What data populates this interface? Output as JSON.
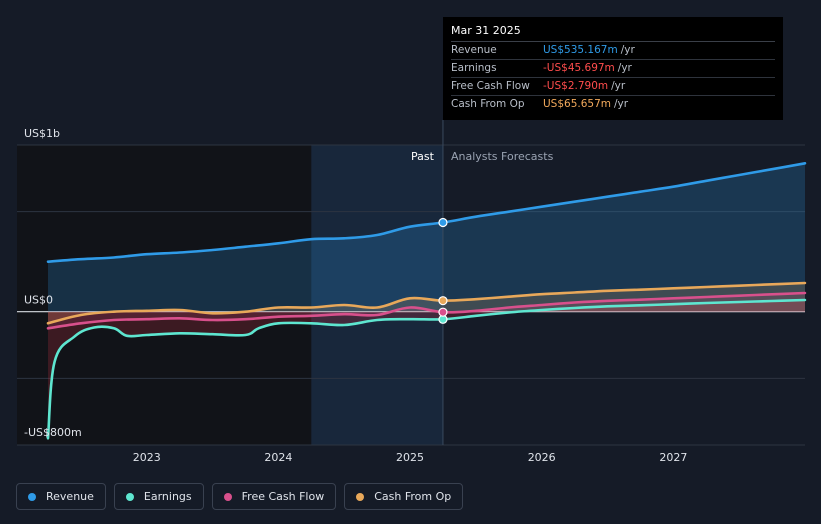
{
  "colors": {
    "revenue": "#2f9be8",
    "earnings": "#5ee6d0",
    "fcf": "#d8508c",
    "cfo": "#e8a85a",
    "background": "#151b27",
    "past_band": "#111317"
  },
  "tooltip": {
    "date": "Mar 31 2025",
    "rows": [
      {
        "label": "Revenue",
        "value": "US$535.167m",
        "unit": "/yr",
        "color": "#2f9be8"
      },
      {
        "label": "Earnings",
        "value": "-US$45.697m",
        "unit": "/yr",
        "color": "#ff4d4d"
      },
      {
        "label": "Free Cash Flow",
        "value": "-US$2.790m",
        "unit": "/yr",
        "color": "#ff4d4d"
      },
      {
        "label": "Cash From Op",
        "value": "US$65.657m",
        "unit": "/yr",
        "color": "#f2a95c"
      }
    ]
  },
  "legend": [
    {
      "label": "Revenue",
      "color": "#2f9be8"
    },
    {
      "label": "Earnings",
      "color": "#5ee6d0"
    },
    {
      "label": "Free Cash Flow",
      "color": "#d8508c"
    },
    {
      "label": "Cash From Op",
      "color": "#e8a85a"
    }
  ],
  "chart_data": {
    "type": "line",
    "y_unit": "US$ millions",
    "ylim": [
      -800,
      1000
    ],
    "y_labels": [
      {
        "value": 1000,
        "text": "US$1b"
      },
      {
        "value": 0,
        "text": "US$0"
      },
      {
        "value": -800,
        "text": "-US$800m"
      }
    ],
    "gridlines": [
      1000,
      600,
      0,
      -400
    ],
    "xlim": [
      2022.25,
      2028.0
    ],
    "x_ticks": [
      {
        "value": 2023.0,
        "text": "2023"
      },
      {
        "value": 2024.0,
        "text": "2024"
      },
      {
        "value": 2025.0,
        "text": "2025"
      },
      {
        "value": 2026.0,
        "text": "2026"
      },
      {
        "value": 2027.0,
        "text": "2027"
      }
    ],
    "past_label": "Past",
    "forecast_label": "Analysts Forecasts",
    "divider_x": 2025.25,
    "highlight_start_x": 2024.25,
    "series": [
      {
        "name": "Revenue",
        "key": "revenue",
        "x": [
          2022.25,
          2022.5,
          2022.75,
          2023.0,
          2023.25,
          2023.5,
          2023.75,
          2024.0,
          2024.25,
          2024.5,
          2024.75,
          2025.0,
          2025.25,
          2025.5,
          2025.75,
          2026.0,
          2026.25,
          2026.5,
          2026.75,
          2027.0,
          2027.25,
          2027.5,
          2027.75,
          2028.0
        ],
        "y": [
          300,
          315,
          325,
          345,
          355,
          370,
          390,
          410,
          435,
          440,
          460,
          510,
          535,
          570,
          600,
          630,
          660,
          690,
          720,
          750,
          785,
          820,
          855,
          890
        ]
      },
      {
        "name": "Earnings",
        "key": "earnings",
        "x": [
          2022.25,
          2022.3,
          2022.45,
          2022.6,
          2022.75,
          2022.85,
          2023.0,
          2023.25,
          2023.5,
          2023.75,
          2023.85,
          2024.0,
          2024.25,
          2024.5,
          2024.75,
          2025.0,
          2025.25,
          2025.5,
          2025.75,
          2026.0,
          2026.25,
          2026.5,
          2026.75,
          2027.0,
          2027.25,
          2027.5,
          2027.75,
          2028.0
        ],
        "y": [
          -760,
          -300,
          -150,
          -95,
          -100,
          -145,
          -140,
          -130,
          -135,
          -140,
          -100,
          -70,
          -70,
          -80,
          -50,
          -45,
          -46,
          -25,
          -5,
          10,
          22,
          32,
          38,
          45,
          52,
          58,
          64,
          70
        ]
      },
      {
        "name": "Free Cash Flow",
        "key": "fcf",
        "x": [
          2022.25,
          2022.5,
          2022.75,
          2023.0,
          2023.25,
          2023.5,
          2023.75,
          2024.0,
          2024.25,
          2024.5,
          2024.75,
          2025.0,
          2025.25,
          2025.5,
          2025.75,
          2026.0,
          2026.25,
          2026.5,
          2026.75,
          2027.0,
          2027.25,
          2027.5,
          2027.75,
          2028.0
        ],
        "y": [
          -100,
          -70,
          -50,
          -45,
          -40,
          -50,
          -45,
          -30,
          -25,
          -15,
          -20,
          25,
          -3,
          5,
          25,
          40,
          55,
          65,
          72,
          80,
          88,
          96,
          104,
          112
        ]
      },
      {
        "name": "Cash From Op",
        "key": "cfo",
        "x": [
          2022.25,
          2022.5,
          2022.75,
          2023.0,
          2023.25,
          2023.5,
          2023.75,
          2024.0,
          2024.25,
          2024.5,
          2024.75,
          2025.0,
          2025.25,
          2025.5,
          2025.75,
          2026.0,
          2026.25,
          2026.5,
          2026.75,
          2027.0,
          2027.25,
          2027.5,
          2027.75,
          2028.0
        ],
        "y": [
          -70,
          -20,
          0,
          5,
          10,
          -10,
          0,
          25,
          25,
          40,
          25,
          80,
          66,
          75,
          90,
          105,
          115,
          125,
          132,
          140,
          148,
          156,
          164,
          172
        ]
      }
    ]
  }
}
